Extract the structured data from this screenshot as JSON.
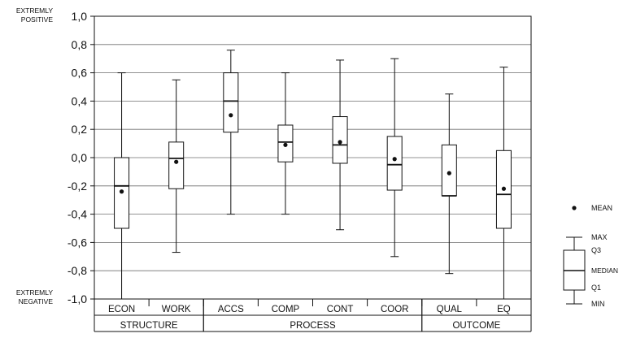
{
  "chart_data": {
    "type": "boxplot",
    "ylim": [
      -1.0,
      1.0
    ],
    "y_ticks": [
      "1,0",
      "0,8",
      "0,6",
      "0,4",
      "0,2",
      "0,0",
      "-0,2",
      "-0,4",
      "-0,6",
      "-0,8",
      "-1,0"
    ],
    "y_tick_values": [
      1.0,
      0.8,
      0.6,
      0.4,
      0.2,
      0.0,
      -0.2,
      -0.4,
      -0.6,
      -0.8,
      -1.0
    ],
    "y_top_label": [
      "EXTREMLY",
      "POSITIVE"
    ],
    "y_bottom_label": [
      "EXTREMLY",
      "NEGATIVE"
    ],
    "grid": "horizontal",
    "categories": [
      "ECON",
      "WORK",
      "ACCS",
      "COMP",
      "CONT",
      "COOR",
      "QUAL",
      "EQ"
    ],
    "groups": [
      {
        "label": "STRUCTURE",
        "start": 0,
        "end": 1
      },
      {
        "label": "PROCESS",
        "start": 2,
        "end": 5
      },
      {
        "label": "OUTCOME",
        "start": 6,
        "end": 7
      }
    ],
    "boxes": [
      {
        "category": "ECON",
        "min": -1.0,
        "q1": -0.5,
        "median": -0.2,
        "q3": 0.0,
        "max": 0.6,
        "mean": -0.24
      },
      {
        "category": "WORK",
        "min": -0.67,
        "q1": -0.22,
        "median": -0.005,
        "q3": 0.11,
        "max": 0.55,
        "mean": -0.03
      },
      {
        "category": "ACCS",
        "min": -0.4,
        "q1": 0.18,
        "median": 0.4,
        "q3": 0.6,
        "max": 0.76,
        "mean": 0.3
      },
      {
        "category": "COMP",
        "min": -0.4,
        "q1": -0.03,
        "median": 0.11,
        "q3": 0.23,
        "max": 0.6,
        "mean": 0.09
      },
      {
        "category": "CONT",
        "min": -0.51,
        "q1": -0.04,
        "median": 0.09,
        "q3": 0.29,
        "max": 0.69,
        "mean": 0.11
      },
      {
        "category": "COOR",
        "min": -0.7,
        "q1": -0.23,
        "median": -0.05,
        "q3": 0.15,
        "max": 0.7,
        "mean": -0.01
      },
      {
        "category": "QUAL",
        "min": -0.82,
        "q1": -0.27,
        "median": -0.27,
        "q3": 0.09,
        "max": 0.45,
        "mean": -0.11
      },
      {
        "category": "EQ",
        "min": -1.0,
        "q1": -0.5,
        "median": -0.26,
        "q3": 0.05,
        "max": 0.64,
        "mean": -0.22
      }
    ],
    "legend": {
      "placement": "right",
      "mean_label": "MEAN",
      "max_label": "MAX",
      "q3_label": "Q3",
      "median_label": "MEDIAN",
      "q1_label": "Q1",
      "min_label": "MIN"
    },
    "colors": {
      "line": "#111111",
      "grid": "#6f6f6f",
      "background": "#ffffff"
    }
  }
}
